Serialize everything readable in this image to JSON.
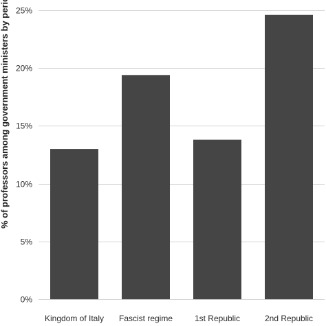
{
  "colors": {
    "bar": "#454545",
    "grid": "#d2d2d2",
    "text": "#2b2b2b",
    "background": "#ffffff"
  },
  "chart_data": {
    "type": "bar",
    "title": "",
    "xlabel": "",
    "ylabel": "% of professors among government ministers by period",
    "categories": [
      "Kingdom of Italy",
      "Fascist regime",
      "1st Republic",
      "2nd Republic"
    ],
    "series": [
      {
        "values": [
          13.0,
          19.4,
          13.8,
          24.6
        ]
      }
    ],
    "ylim": [
      0,
      25
    ],
    "yticks": [
      0,
      5,
      10,
      15,
      20,
      25
    ],
    "ytick_labels": [
      "0%",
      "5%",
      "10%",
      "15%",
      "20%",
      "25%"
    ],
    "grid": true,
    "legend": "none"
  }
}
